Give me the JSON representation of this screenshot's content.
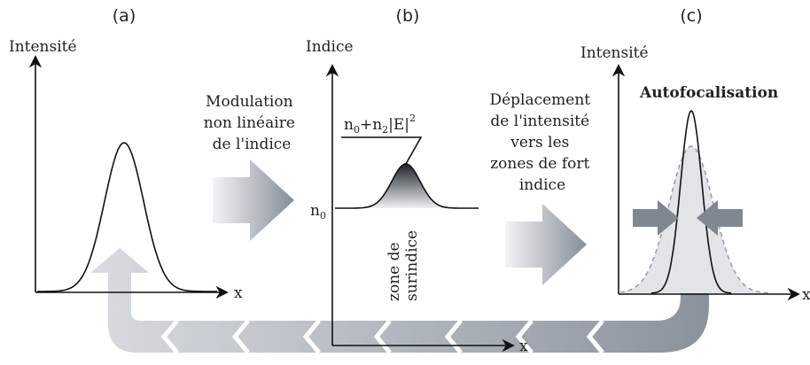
{
  "panels": [
    {
      "tag": "(a)",
      "axis_label": "Intensité",
      "x_label": "x"
    },
    {
      "tag": "(b)",
      "axis_label": "Indice",
      "x_label": "x",
      "baseline_label": [
        "n",
        "0"
      ],
      "formula": [
        "n",
        "0",
        "+n",
        "2",
        "|E|",
        "2"
      ],
      "zone_label": [
        "zone de",
        "surindice"
      ]
    },
    {
      "tag": "(c)",
      "axis_label": "Intensité",
      "x_label": "x",
      "title": "Autofocalisation"
    }
  ],
  "steps": [
    {
      "lines": [
        "Modulation",
        "non linéaire",
        "de l'indice"
      ]
    },
    {
      "lines": [
        "Déplacement",
        "de l'intensité",
        "vers les",
        "zones de fort",
        "indice"
      ]
    }
  ]
}
